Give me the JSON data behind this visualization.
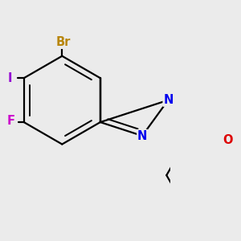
{
  "bg_color": "#ebebeb",
  "bond_color": "#000000",
  "bond_width": 1.6,
  "atom_labels": {
    "Br": {
      "color": "#b8860b",
      "fontsize": 10.5,
      "fontweight": "bold"
    },
    "I": {
      "color": "#9400d3",
      "fontsize": 10.5,
      "fontweight": "bold"
    },
    "F": {
      "color": "#cc00cc",
      "fontsize": 10.5,
      "fontweight": "bold"
    },
    "N": {
      "color": "#0000ee",
      "fontsize": 10.5,
      "fontweight": "bold"
    },
    "O": {
      "color": "#dd0000",
      "fontsize": 10.5,
      "fontweight": "bold"
    }
  }
}
